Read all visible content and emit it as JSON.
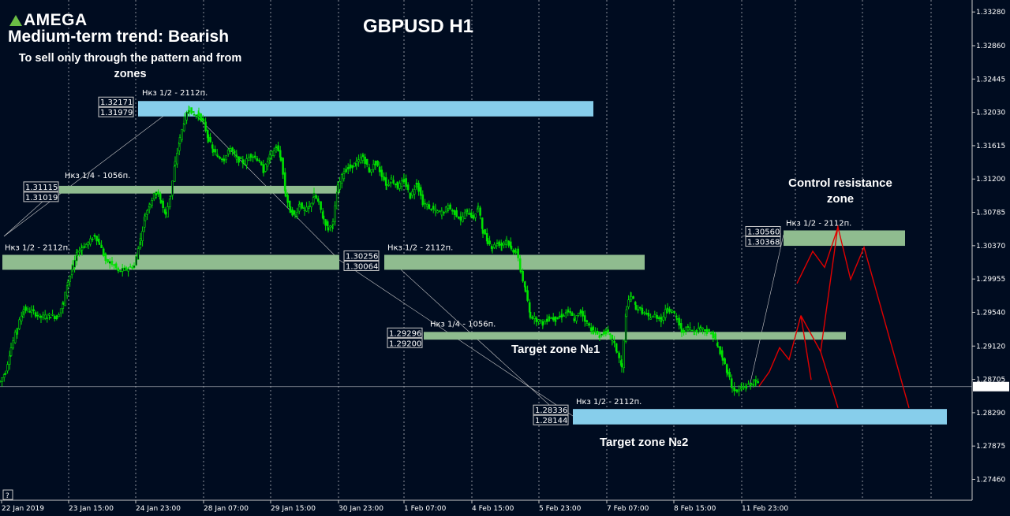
{
  "brand": {
    "logo_text": "AMEGA",
    "logo_color": "#6cbe45"
  },
  "header": {
    "trend": "Medium-term trend: Bearish",
    "note": "To sell only through the pattern and from zones",
    "symbol_title": "GBPUSD H1"
  },
  "annotations": {
    "target1": "Target zone №1",
    "target2": "Target zone №2",
    "control": "Control resistance zone"
  },
  "colors": {
    "background": "#000c20",
    "candle_bull": "#00e000",
    "candle_bear": "#00e000",
    "zone_green": "#8fbc8f",
    "zone_blue": "#87ceeb",
    "forecast": "#e00000",
    "grid": "#ffffff"
  },
  "chart_data": {
    "type": "candlestick",
    "title": "GBPUSD H1",
    "xlabel": "",
    "ylabel": "",
    "ylim": [
      1.272,
      1.3338
    ],
    "grid": "vertical dotted",
    "current_price": "1.28615",
    "y_ticks": [
      "1.33280",
      "1.32860",
      "1.32445",
      "1.32030",
      "1.31615",
      "1.31200",
      "1.30785",
      "1.30370",
      "1.29955",
      "1.29540",
      "1.29120",
      "1.28705",
      "1.28290",
      "1.27875",
      "1.27460"
    ],
    "x_ticks": [
      "22 Jan 2019",
      "23 Jan 15:00",
      "24 Jan 23:00",
      "28 Jan 07:00",
      "29 Jan 15:00",
      "30 Jan 23:00",
      "1 Feb 07:00",
      "4 Feb 15:00",
      "5 Feb 23:00",
      "7 Feb 07:00",
      "8 Feb 15:00",
      "11 Feb 23:00"
    ],
    "path": [
      [
        0,
        1.2868
      ],
      [
        7,
        1.288
      ],
      [
        14,
        1.291
      ],
      [
        22,
        1.2935
      ],
      [
        30,
        1.2958
      ],
      [
        40,
        1.2955
      ],
      [
        52,
        1.2948
      ],
      [
        64,
        1.295
      ],
      [
        72,
        1.2948
      ],
      [
        80,
        1.2965
      ],
      [
        86,
        1.2992
      ],
      [
        92,
        1.301
      ],
      [
        98,
        1.3028
      ],
      [
        104,
        1.3035
      ],
      [
        112,
        1.304
      ],
      [
        120,
        1.305
      ],
      [
        126,
        1.304
      ],
      [
        134,
        1.3018
      ],
      [
        142,
        1.3015
      ],
      [
        150,
        1.3005
      ],
      [
        160,
        1.3008
      ],
      [
        170,
        1.3012
      ],
      [
        178,
        1.3045
      ],
      [
        184,
        1.3075
      ],
      [
        190,
        1.309
      ],
      [
        198,
        1.3105
      ],
      [
        204,
        1.3092
      ],
      [
        210,
        1.3075
      ],
      [
        216,
        1.31
      ],
      [
        222,
        1.314
      ],
      [
        228,
        1.317
      ],
      [
        234,
        1.3195
      ],
      [
        240,
        1.3208
      ],
      [
        246,
        1.32
      ],
      [
        252,
        1.32
      ],
      [
        258,
        1.319
      ],
      [
        264,
        1.317
      ],
      [
        270,
        1.3155
      ],
      [
        276,
        1.3148
      ],
      [
        284,
        1.3145
      ],
      [
        292,
        1.3158
      ],
      [
        300,
        1.3145
      ],
      [
        310,
        1.314
      ],
      [
        318,
        1.315
      ],
      [
        326,
        1.3145
      ],
      [
        334,
        1.313
      ],
      [
        342,
        1.3148
      ],
      [
        350,
        1.316
      ],
      [
        356,
        1.3145
      ],
      [
        362,
        1.31
      ],
      [
        368,
        1.308
      ],
      [
        374,
        1.3075
      ],
      [
        380,
        1.309
      ],
      [
        386,
        1.308
      ],
      [
        392,
        1.3085
      ],
      [
        398,
        1.31
      ],
      [
        404,
        1.309
      ],
      [
        410,
        1.307
      ],
      [
        416,
        1.3058
      ],
      [
        422,
        1.3065
      ],
      [
        428,
        1.311
      ],
      [
        436,
        1.313
      ],
      [
        444,
        1.3135
      ],
      [
        452,
        1.314
      ],
      [
        460,
        1.3148
      ],
      [
        468,
        1.313
      ],
      [
        476,
        1.314
      ],
      [
        484,
        1.3125
      ],
      [
        490,
        1.3112
      ],
      [
        496,
        1.312
      ],
      [
        504,
        1.311
      ],
      [
        512,
        1.3118
      ],
      [
        520,
        1.3098
      ],
      [
        528,
        1.3115
      ],
      [
        536,
        1.309
      ],
      [
        544,
        1.3085
      ],
      [
        552,
        1.308
      ],
      [
        560,
        1.3078
      ],
      [
        568,
        1.3085
      ],
      [
        576,
        1.3078
      ],
      [
        584,
        1.307
      ],
      [
        592,
        1.308
      ],
      [
        600,
        1.3072
      ],
      [
        606,
        1.3085
      ],
      [
        612,
        1.3055
      ],
      [
        618,
        1.3042
      ],
      [
        624,
        1.3035
      ],
      [
        630,
        1.304
      ],
      [
        636,
        1.3038
      ],
      [
        642,
        1.3045
      ],
      [
        648,
        1.3032
      ],
      [
        654,
        1.303
      ],
      [
        660,
        1.3005
      ],
      [
        666,
        1.298
      ],
      [
        672,
        1.295
      ],
      [
        680,
        1.2945
      ],
      [
        688,
        1.294
      ],
      [
        696,
        1.2948
      ],
      [
        704,
        1.2945
      ],
      [
        712,
        1.295
      ],
      [
        720,
        1.2955
      ],
      [
        728,
        1.2945
      ],
      [
        736,
        1.2955
      ],
      [
        744,
        1.294
      ],
      [
        752,
        1.293
      ],
      [
        760,
        1.2925
      ],
      [
        768,
        1.293
      ],
      [
        776,
        1.292
      ],
      [
        782,
        1.2905
      ],
      [
        788,
        1.2885
      ],
      [
        794,
        1.296
      ],
      [
        800,
        1.2975
      ],
      [
        806,
        1.296
      ],
      [
        814,
        1.2955
      ],
      [
        822,
        1.2948
      ],
      [
        830,
        1.295
      ],
      [
        838,
        1.2945
      ],
      [
        846,
        1.296
      ],
      [
        852,
        1.2955
      ],
      [
        858,
        1.2945
      ],
      [
        864,
        1.293
      ],
      [
        872,
        1.2935
      ],
      [
        880,
        1.293
      ],
      [
        888,
        1.2935
      ],
      [
        896,
        1.293
      ],
      [
        904,
        1.2925
      ],
      [
        910,
        1.291
      ],
      [
        916,
        1.2895
      ],
      [
        922,
        1.288
      ],
      [
        928,
        1.286
      ],
      [
        934,
        1.2855
      ],
      [
        940,
        1.286
      ],
      [
        946,
        1.2862
      ],
      [
        952,
        1.2865
      ],
      [
        958,
        1.2868
      ],
      [
        962,
        1.2862
      ]
    ],
    "zones": [
      {
        "kind": "green",
        "upper": "1.31115",
        "lower": "1.31019",
        "label": "Нкз 1/4 - 1056п.",
        "value_hi": 1.31115,
        "value_lo": 1.31019
      },
      {
        "kind": "green",
        "upper": "",
        "lower": "",
        "label": "Нкз 1/2 - 2112п.",
        "value_hi": 1.30256,
        "value_lo": 1.30064
      },
      {
        "kind": "green",
        "upper": "1.30256",
        "lower": "1.30064",
        "label": "Нкз 1/2 - 2112п.",
        "value_hi": 1.30256,
        "value_lo": 1.30064
      },
      {
        "kind": "green",
        "upper": "1.29296",
        "lower": "1.29200",
        "label": "Нкз 1/4 - 1056п.",
        "value_hi": 1.29296,
        "value_lo": 1.292
      },
      {
        "kind": "green",
        "upper": "1.30560",
        "lower": "1.30368",
        "label": "Нкз 1/2 - 2112п.",
        "value_hi": 1.3056,
        "value_lo": 1.30368
      },
      {
        "kind": "blue",
        "upper": "1.32171",
        "lower": "1.31979",
        "label": "Нкз 1/2 - 2112п.",
        "value_hi": 1.32171,
        "value_lo": 1.31979
      },
      {
        "kind": "blue",
        "upper": "1.28336",
        "lower": "1.28144",
        "label": "Нкз 1/2 - 2112п.",
        "value_hi": 1.28336,
        "value_lo": 1.28144
      }
    ],
    "forecast_paths": [
      [
        [
          962,
          1.2862
        ],
        [
          975,
          1.288
        ],
        [
          988,
          1.291
        ],
        [
          1000,
          1.2895
        ],
        [
          1015,
          1.295
        ],
        [
          1028,
          1.287
        ]
      ],
      [
        [
          1010,
          1.299
        ],
        [
          1030,
          1.303
        ],
        [
          1045,
          1.301
        ],
        [
          1062,
          1.306
        ],
        [
          1078,
          1.2995
        ],
        [
          1095,
          1.3035
        ],
        [
          1152,
          1.2835
        ]
      ],
      [
        [
          1015,
          1.295
        ],
        [
          1040,
          1.2905
        ],
        [
          1062,
          1.2835
        ]
      ],
      [
        [
          1040,
          1.2905
        ],
        [
          1062,
          1.3062
        ]
      ]
    ]
  }
}
